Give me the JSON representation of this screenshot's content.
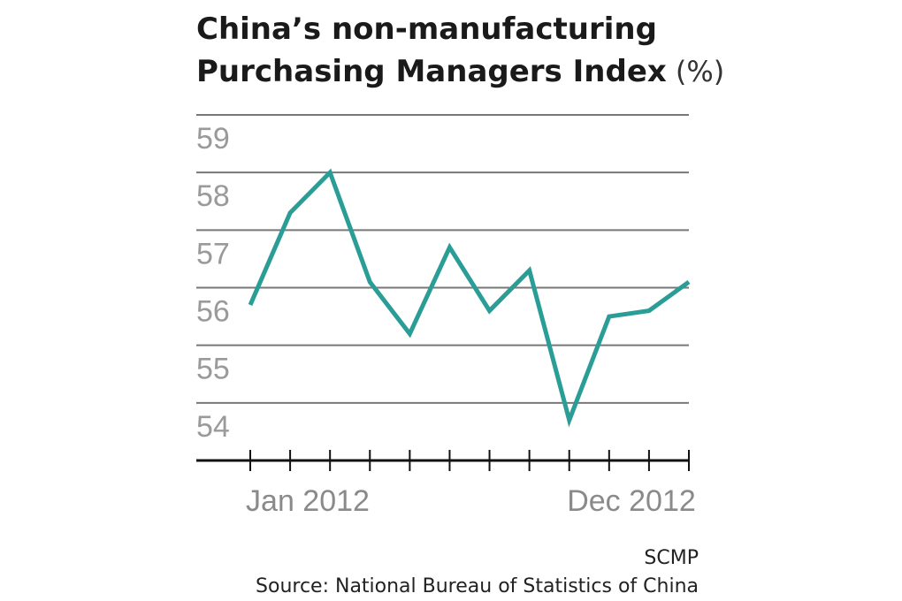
{
  "chart_data": {
    "type": "line",
    "title_lines": [
      "China’s non-manufacturing",
      "Purchasing Managers Index"
    ],
    "unit": "(%)",
    "categories": [
      "Jan 2012",
      null,
      null,
      null,
      null,
      null,
      null,
      null,
      null,
      null,
      null,
      "Dec 2012"
    ],
    "series": [
      {
        "color": "#2a9d96",
        "values": [
          55.7,
          57.3,
          58.0,
          56.1,
          55.2,
          56.7,
          55.6,
          56.3,
          53.7,
          55.5,
          55.6,
          56.1
        ]
      }
    ],
    "ylim": [
      53,
      59
    ],
    "yticks": [
      54,
      55,
      56,
      57,
      58,
      59
    ],
    "grid": true,
    "credit": "SCMP",
    "source": "Source: National Bureau of Statistics of China"
  }
}
